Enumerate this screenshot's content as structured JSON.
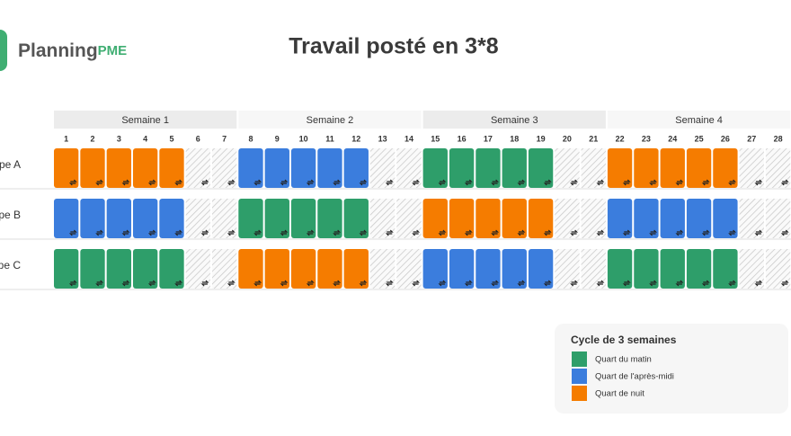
{
  "logo": {
    "name": "Planning",
    "suffix": "PME",
    "color": "#3fae72"
  },
  "title": "Travail posté en 3*8",
  "weeks": [
    "Semaine 1",
    "Semaine 2",
    "Semaine 3",
    "Semaine 4"
  ],
  "days": [
    1,
    2,
    3,
    4,
    5,
    6,
    7,
    8,
    9,
    10,
    11,
    12,
    13,
    14,
    15,
    16,
    17,
    18,
    19,
    20,
    21,
    22,
    23,
    24,
    25,
    26,
    27,
    28
  ],
  "rows": [
    {
      "label": "Équipe A",
      "weeks": [
        "#f57c00",
        "#3b7ddd",
        "#2e9e6a",
        "#f57c00"
      ]
    },
    {
      "label": "Équipe B",
      "weeks": [
        "#3b7ddd",
        "#2e9e6a",
        "#f57c00",
        "#3b7ddd"
      ]
    },
    {
      "label": "Équipe C",
      "weeks": [
        "#2e9e6a",
        "#f57c00",
        "#3b7ddd",
        "#2e9e6a"
      ]
    }
  ],
  "legend": {
    "title": "Cycle de 3 semaines",
    "items": [
      {
        "label": "Quart du matin",
        "color": "#2e9e6a"
      },
      {
        "label": "Quart de l'après-midi",
        "color": "#3b7ddd"
      },
      {
        "label": "Quart de nuit",
        "color": "#f57c00"
      }
    ]
  }
}
